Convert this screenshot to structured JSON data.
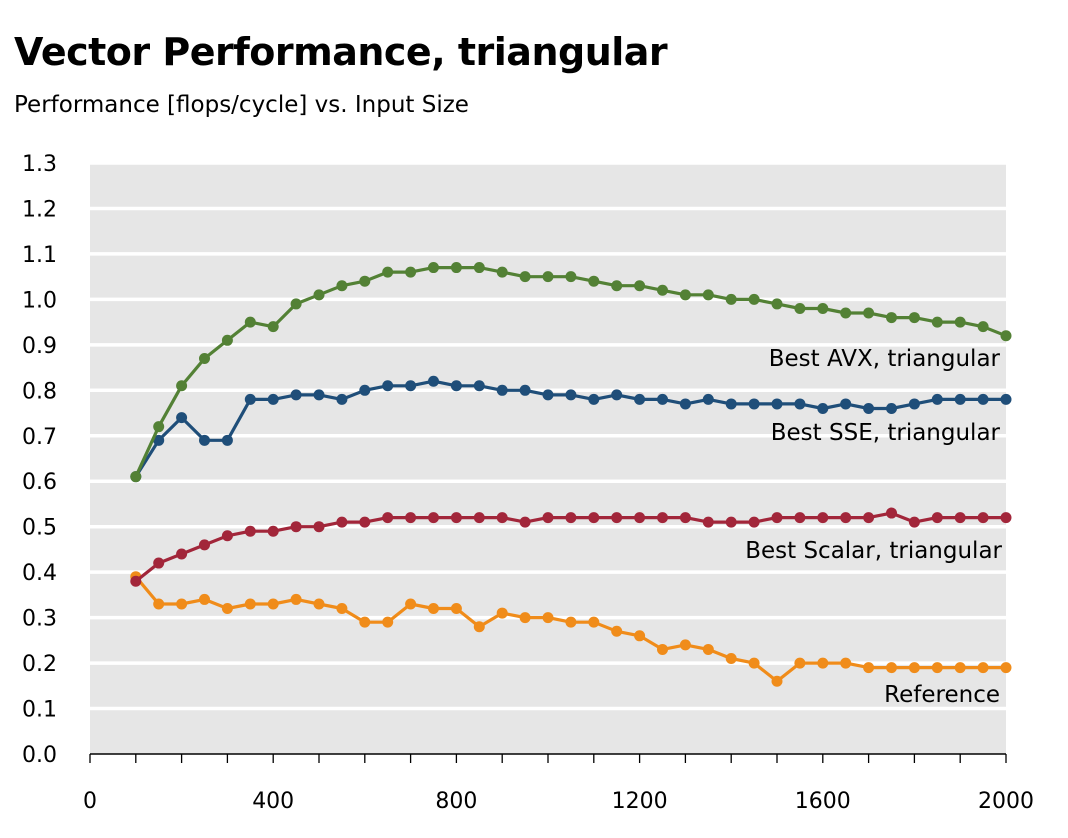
{
  "title": "Vector Performance, triangular",
  "subtitle": "Performance [flops/cycle] vs. Input Size",
  "colors": {
    "plot_background": "#e6e6e6",
    "gridline": "#ffffff",
    "axis": "#000000"
  },
  "chart_data": {
    "type": "line",
    "title": "Vector Performance, triangular",
    "subtitle": "Performance [flops/cycle] vs. Input Size",
    "xlabel": "",
    "ylabel": "",
    "xlim": [
      0,
      2000
    ],
    "ylim": [
      0.0,
      1.3
    ],
    "xticks": [
      "0",
      "400",
      "800",
      "1200",
      "1600",
      "2000"
    ],
    "yticks": [
      "0.0",
      "0.1",
      "0.2",
      "0.3",
      "0.4",
      "0.5",
      "0.6",
      "0.7",
      "0.8",
      "0.9",
      "1.0",
      "1.1",
      "1.2",
      "1.3"
    ],
    "grid": true,
    "legend": "none (series labeled inline)",
    "x": [
      100,
      150,
      200,
      250,
      300,
      350,
      400,
      450,
      500,
      550,
      600,
      650,
      700,
      750,
      800,
      850,
      900,
      950,
      1000,
      1050,
      1100,
      1150,
      1200,
      1250,
      1300,
      1350,
      1400,
      1450,
      1500,
      1550,
      1600,
      1650,
      1700,
      1750,
      1800,
      1850,
      1900,
      1950,
      2000
    ],
    "series": [
      {
        "name": "Best AVX, triangular",
        "color": "#538135",
        "values": [
          0.61,
          0.72,
          0.81,
          0.87,
          0.91,
          0.95,
          0.94,
          0.99,
          1.01,
          1.03,
          1.04,
          1.06,
          1.06,
          1.07,
          1.07,
          1.07,
          1.06,
          1.05,
          1.05,
          1.05,
          1.04,
          1.03,
          1.03,
          1.02,
          1.01,
          1.01,
          1.0,
          1.0,
          0.99,
          0.98,
          0.98,
          0.97,
          0.97,
          0.96,
          0.96,
          0.95,
          0.95,
          0.94,
          0.92
        ]
      },
      {
        "name": "Best SSE, triangular",
        "color": "#1f4e79",
        "values": [
          0.61,
          0.69,
          0.74,
          0.69,
          0.69,
          0.78,
          0.78,
          0.79,
          0.79,
          0.78,
          0.8,
          0.81,
          0.81,
          0.82,
          0.81,
          0.81,
          0.8,
          0.8,
          0.79,
          0.79,
          0.78,
          0.79,
          0.78,
          0.78,
          0.77,
          0.78,
          0.77,
          0.77,
          0.77,
          0.77,
          0.76,
          0.77,
          0.76,
          0.76,
          0.77,
          0.78,
          0.78,
          0.78,
          0.78
        ]
      },
      {
        "name": "Best Scalar, triangular",
        "color": "#a2263a",
        "values": [
          0.38,
          0.42,
          0.44,
          0.46,
          0.48,
          0.49,
          0.49,
          0.5,
          0.5,
          0.51,
          0.51,
          0.52,
          0.52,
          0.52,
          0.52,
          0.52,
          0.52,
          0.51,
          0.52,
          0.52,
          0.52,
          0.52,
          0.52,
          0.52,
          0.52,
          0.51,
          0.51,
          0.51,
          0.52,
          0.52,
          0.52,
          0.52,
          0.52,
          0.53,
          0.51,
          0.52,
          0.52,
          0.52,
          0.52
        ]
      },
      {
        "name": "Reference",
        "color": "#f08c1a",
        "values": [
          0.39,
          0.33,
          0.33,
          0.34,
          0.32,
          0.33,
          0.33,
          0.34,
          0.33,
          0.32,
          0.29,
          0.29,
          0.33,
          0.32,
          0.32,
          0.28,
          0.31,
          0.3,
          0.3,
          0.29,
          0.29,
          0.27,
          0.26,
          0.23,
          0.24,
          0.23,
          0.21,
          0.2,
          0.16,
          0.2,
          0.2,
          0.2,
          0.19,
          0.19,
          0.19,
          0.19,
          0.19,
          0.19,
          0.19
        ]
      }
    ]
  }
}
